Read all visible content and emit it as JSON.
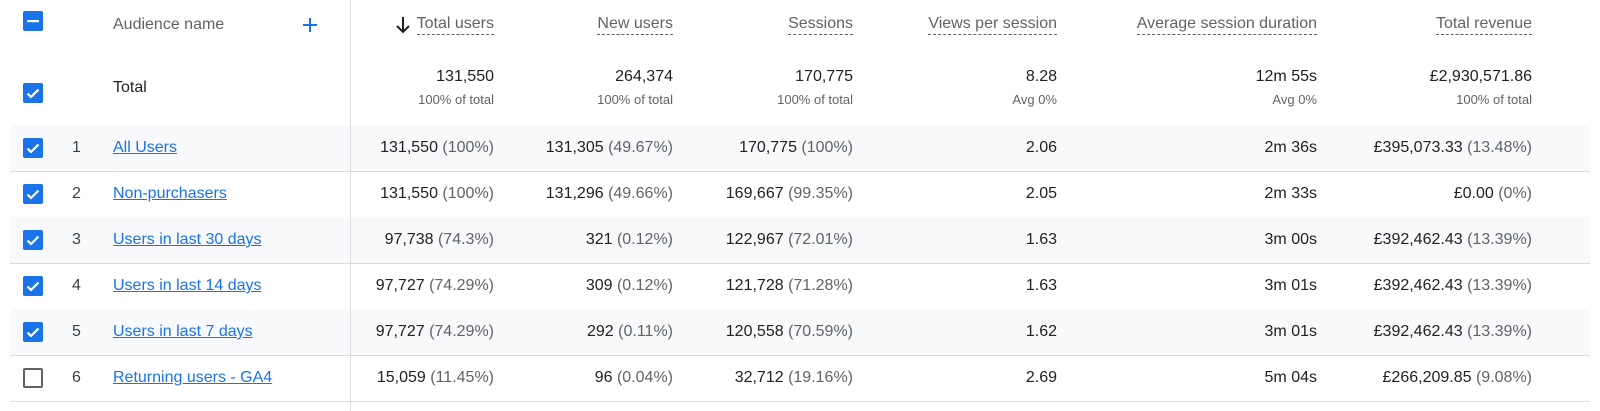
{
  "header": {
    "audience_name": "Audience name",
    "columns": [
      "Total users",
      "New users",
      "Sessions",
      "Views per session",
      "Average session duration",
      "Total revenue"
    ]
  },
  "total": {
    "label": "Total",
    "values": [
      {
        "main": "131,550",
        "sub": "100% of total"
      },
      {
        "main": "264,374",
        "sub": "100% of total"
      },
      {
        "main": "170,775",
        "sub": "100% of total"
      },
      {
        "main": "8.28",
        "sub": "Avg 0%"
      },
      {
        "main": "12m 55s",
        "sub": "Avg 0%"
      },
      {
        "main": "£2,930,571.86",
        "sub": "100% of total"
      }
    ]
  },
  "rows": [
    {
      "index": "1",
      "name": "All Users",
      "checked": true,
      "total_users": "131,550",
      "total_users_pct": "(100%)",
      "new_users": "131,305",
      "new_users_pct": "(49.67%)",
      "sessions": "170,775",
      "sessions_pct": "(100%)",
      "views_per_session": "2.06",
      "avg_duration": "2m 36s",
      "revenue": "£395,073.33",
      "revenue_pct": "(13.48%)"
    },
    {
      "index": "2",
      "name": "Non-purchasers",
      "checked": true,
      "total_users": "131,550",
      "total_users_pct": "(100%)",
      "new_users": "131,296",
      "new_users_pct": "(49.66%)",
      "sessions": "169,667",
      "sessions_pct": "(99.35%)",
      "views_per_session": "2.05",
      "avg_duration": "2m 33s",
      "revenue": "£0.00",
      "revenue_pct": "(0%)"
    },
    {
      "index": "3",
      "name": "Users in last 30 days",
      "checked": true,
      "total_users": "97,738",
      "total_users_pct": "(74.3%)",
      "new_users": "321",
      "new_users_pct": "(0.12%)",
      "sessions": "122,967",
      "sessions_pct": "(72.01%)",
      "views_per_session": "1.63",
      "avg_duration": "3m 00s",
      "revenue": "£392,462.43",
      "revenue_pct": "(13.39%)"
    },
    {
      "index": "4",
      "name": "Users in last 14 days",
      "checked": true,
      "total_users": "97,727",
      "total_users_pct": "(74.29%)",
      "new_users": "309",
      "new_users_pct": "(0.12%)",
      "sessions": "121,728",
      "sessions_pct": "(71.28%)",
      "views_per_session": "1.63",
      "avg_duration": "3m 01s",
      "revenue": "£392,462.43",
      "revenue_pct": "(13.39%)"
    },
    {
      "index": "5",
      "name": "Users in last 7 days",
      "checked": true,
      "total_users": "97,727",
      "total_users_pct": "(74.29%)",
      "new_users": "292",
      "new_users_pct": "(0.11%)",
      "sessions": "120,558",
      "sessions_pct": "(70.59%)",
      "views_per_session": "1.62",
      "avg_duration": "3m 01s",
      "revenue": "£392,462.43",
      "revenue_pct": "(13.39%)"
    },
    {
      "index": "6",
      "name": "Returning users - GA4",
      "checked": false,
      "total_users": "15,059",
      "total_users_pct": "(11.45%)",
      "new_users": "96",
      "new_users_pct": "(0.04%)",
      "sessions": "32,712",
      "sessions_pct": "(19.16%)",
      "views_per_session": "2.69",
      "avg_duration": "5m 04s",
      "revenue": "£266,209.85",
      "revenue_pct": "(9.08%)"
    }
  ],
  "icons": {
    "header_checkbox": "minus-checkbox-icon",
    "sort": "arrow-down-icon",
    "add": "plus-icon",
    "checked": "check-icon"
  },
  "colors": {
    "accent": "#1a73e8",
    "row_alt": "#f8f9fa",
    "divider": "#dadce0",
    "muted": "#5f6368"
  }
}
